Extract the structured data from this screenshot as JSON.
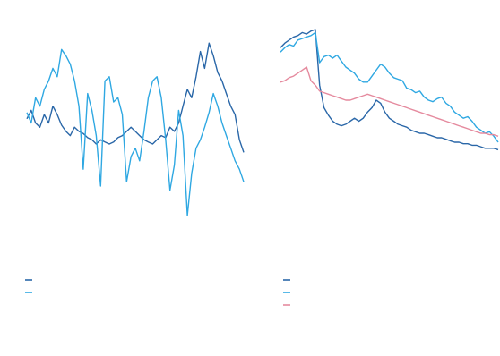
{
  "colors": {
    "dark_blue": "#2a67a8",
    "light_blue": "#2fa8e2",
    "pink": "#e58a9e",
    "legend_text": "#b3c6dd",
    "footnote_text": "#b7c7da",
    "background": "#ffffff"
  },
  "chart_data": [
    {
      "type": "line",
      "title": "",
      "xlabel": "",
      "ylabel": "",
      "grid": false,
      "legend_placement": "bottom",
      "x": [
        0,
        1,
        2,
        3,
        4,
        5,
        6,
        7,
        8,
        9,
        10,
        11,
        12,
        13,
        14,
        15,
        16,
        17,
        18,
        19,
        20,
        21,
        22,
        23,
        24,
        25,
        26,
        27,
        28,
        29,
        30,
        31,
        32,
        33,
        34,
        35,
        36,
        37,
        38,
        39,
        40,
        41,
        42,
        43,
        44,
        45,
        46,
        47,
        48,
        49,
        50
      ],
      "ylim": [
        0,
        100
      ],
      "series": [
        {
          "color": "#2a67a8",
          "values": [
            52,
            56,
            50,
            48,
            54,
            50,
            58,
            54,
            49,
            46,
            44,
            48,
            46,
            45,
            43,
            42,
            40,
            42,
            41,
            40,
            41,
            43,
            44,
            46,
            48,
            46,
            44,
            42,
            41,
            40,
            42,
            44,
            43,
            48,
            46,
            50,
            58,
            66,
            62,
            72,
            84,
            76,
            88,
            82,
            74,
            70,
            64,
            58,
            54,
            42,
            36
          ]
        },
        {
          "color": "#2fa8e2",
          "values": [
            55,
            50,
            62,
            58,
            66,
            70,
            76,
            72,
            85,
            82,
            78,
            70,
            58,
            28,
            64,
            56,
            44,
            20,
            70,
            72,
            60,
            62,
            54,
            22,
            34,
            38,
            32,
            46,
            62,
            70,
            72,
            62,
            42,
            18,
            30,
            56,
            44,
            6,
            26,
            38,
            42,
            48,
            55,
            64,
            58,
            50,
            44,
            38,
            32,
            28,
            22
          ]
        }
      ]
    },
    {
      "type": "line",
      "title": "",
      "xlabel": "",
      "ylabel": "",
      "grid": false,
      "legend_placement": "bottom",
      "x": [
        0,
        1,
        2,
        3,
        4,
        5,
        6,
        7,
        8,
        9,
        10,
        11,
        12,
        13,
        14,
        15,
        16,
        17,
        18,
        19,
        20,
        21,
        22,
        23,
        24,
        25,
        26,
        27,
        28,
        29,
        30,
        31,
        32,
        33,
        34,
        35,
        36,
        37,
        38,
        39,
        40,
        41,
        42,
        43,
        44,
        45,
        46,
        47,
        48,
        49,
        50
      ],
      "ylim": [
        0,
        100
      ],
      "series": [
        {
          "color": "#2a67a8",
          "values": [
            85,
            88,
            90,
            92,
            93,
            95,
            94,
            96,
            97,
            60,
            45,
            40,
            36,
            34,
            33,
            34,
            36,
            38,
            36,
            38,
            42,
            45,
            50,
            48,
            42,
            38,
            36,
            34,
            33,
            32,
            30,
            29,
            28,
            28,
            27,
            26,
            25,
            25,
            24,
            23,
            22,
            22,
            21,
            21,
            20,
            20,
            19,
            18,
            18,
            18,
            17
          ]
        },
        {
          "color": "#2fa8e2",
          "values": [
            82,
            85,
            87,
            86,
            90,
            91,
            92,
            93,
            95,
            75,
            79,
            80,
            78,
            80,
            76,
            72,
            70,
            68,
            64,
            62,
            62,
            66,
            70,
            74,
            72,
            68,
            65,
            64,
            63,
            58,
            57,
            55,
            56,
            52,
            50,
            49,
            51,
            52,
            48,
            46,
            42,
            40,
            38,
            39,
            36,
            32,
            30,
            28,
            29,
            26,
            22
          ]
        },
        {
          "color": "#e58a9e",
          "values": [
            62,
            63,
            65,
            66,
            68,
            70,
            72,
            63,
            60,
            56,
            55,
            54,
            53,
            52,
            51,
            50,
            50,
            51,
            52,
            53,
            54,
            53,
            52,
            51,
            50,
            49,
            48,
            47,
            46,
            45,
            44,
            43,
            42,
            41,
            40,
            39,
            38,
            37,
            36,
            35,
            34,
            33,
            32,
            31,
            30,
            29,
            28,
            28,
            27,
            27,
            26
          ]
        }
      ]
    }
  ]
}
